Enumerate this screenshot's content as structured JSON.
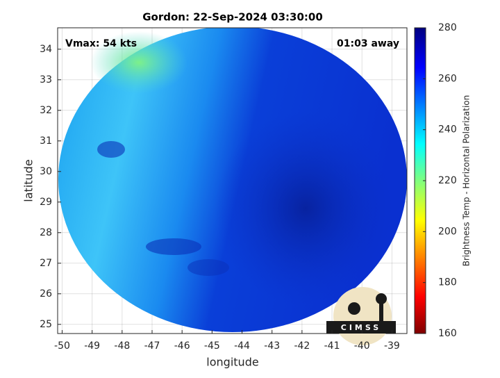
{
  "chart_data": {
    "type": "map",
    "title": "Gordon: 22-Sep-2024 03:30:00",
    "xlabel": "longitude",
    "ylabel": "latitude",
    "xlim": [
      -50.15,
      -38.5
    ],
    "xticks": [
      -50,
      -49,
      -48,
      -47,
      -46,
      -45,
      -44,
      -43,
      -42,
      -41,
      -40,
      -39
    ],
    "ylim": [
      24.7,
      34.7
    ],
    "yticks": [
      25,
      26,
      27,
      28,
      29,
      30,
      31,
      32,
      33,
      34
    ],
    "grid": true,
    "annotations": [
      "Vmax: 54 kts",
      "01:03 away"
    ],
    "logo_text": "CIMSS",
    "colorbar": {
      "label": "Brightness Temp - Horizontal Polarization",
      "lim": [
        160,
        280
      ],
      "ticks": [
        160,
        180,
        200,
        220,
        240,
        260,
        280
      ]
    }
  }
}
